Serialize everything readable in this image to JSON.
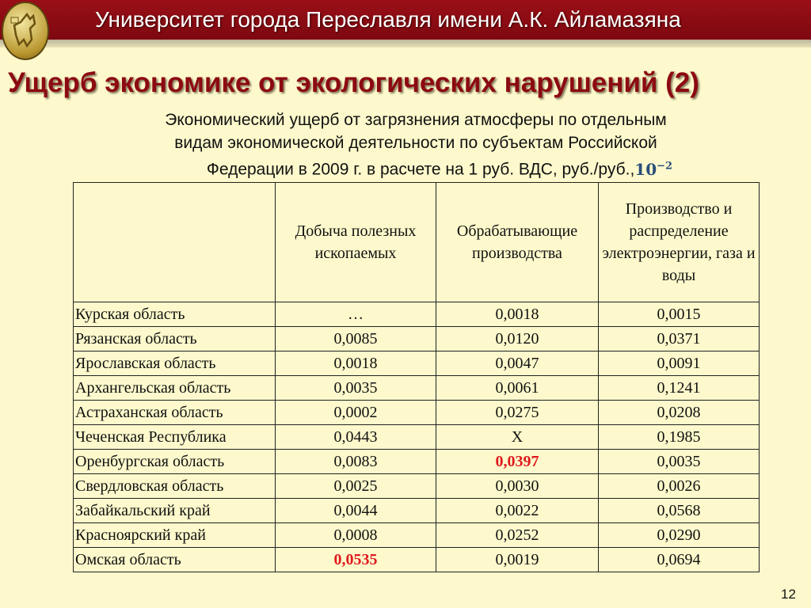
{
  "header": {
    "university": "Университет города Переславля имени А.К. Айламазяна"
  },
  "slide": {
    "title": "Ущерб экономике от экологических нарушений (2)",
    "subtitle_lines": [
      "Экономический ущерб от загрязнения атмосферы по отдельным",
      "видам экономической деятельности по субъектам Российской",
      "Федерации в 2009 г. в расчете на 1 руб. ВДС, руб./руб.,"
    ],
    "unit_base": "10",
    "unit_exp": "−2",
    "page_number": "12"
  },
  "colors": {
    "header_band": "#8c0a12",
    "background": "#fdf9cc",
    "highlight": "#e0191e"
  },
  "table": {
    "headers": [
      "",
      "Добыча полезных ископаемых",
      "Обрабатывающие производства",
      "Производство и распределение электроэнергии, газа и воды"
    ],
    "rows": [
      {
        "region": "Курская область",
        "values": [
          "…",
          "0,0018",
          "0,0015"
        ]
      },
      {
        "region": "Рязанская область",
        "values": [
          "0,0085",
          "0,0120",
          "0,0371"
        ]
      },
      {
        "region": "Ярославская область",
        "values": [
          "0,0018",
          "0,0047",
          "0,0091"
        ]
      },
      {
        "region": "Архангельская область",
        "values": [
          "0,0035",
          "0,0061",
          "0,1241"
        ]
      },
      {
        "region": "Астраханская область",
        "values": [
          "0,0002",
          "0,0275",
          "0,0208"
        ]
      },
      {
        "region": "Чеченская Республика",
        "values": [
          "0,0443",
          "Х",
          "0,1985"
        ]
      },
      {
        "region": "Оренбургская область",
        "values": [
          "0,0083",
          "0,0397",
          "0,0035"
        ],
        "highlight": [
          1
        ]
      },
      {
        "region": "Свердловская область",
        "values": [
          "0,0025",
          "0,0030",
          "0,0026"
        ]
      },
      {
        "region": "Забайкальский край",
        "values": [
          "0,0044",
          "0,0022",
          "0,0568"
        ]
      },
      {
        "region": "Красноярский край",
        "values": [
          "0,0008",
          "0,0252",
          "0,0290"
        ]
      },
      {
        "region": "Омская область",
        "values": [
          "0,0535",
          "0,0019",
          "0,0694"
        ],
        "highlight": [
          0
        ]
      }
    ]
  }
}
